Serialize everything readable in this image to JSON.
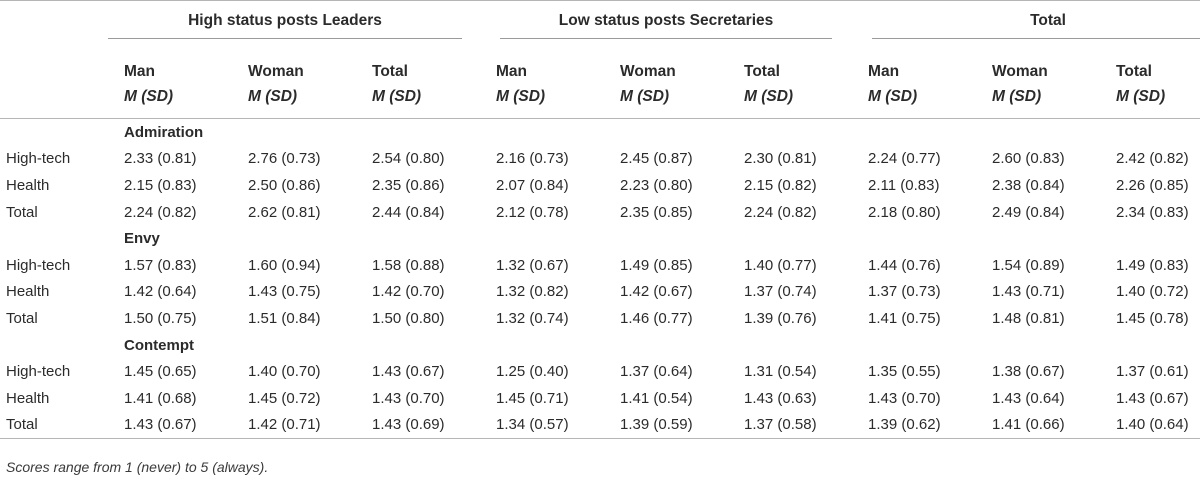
{
  "groups": [
    "High status posts Leaders",
    "Low status posts Secretaries",
    "Total"
  ],
  "subheaders": [
    "Man",
    "Woman",
    "Total"
  ],
  "stat_label": "M (SD)",
  "sections": [
    {
      "title": "Admiration",
      "rows": [
        {
          "label": "High-tech",
          "cells": [
            "2.33 (0.81)",
            "2.76 (0.73)",
            "2.54 (0.80)",
            "2.16 (0.73)",
            "2.45 (0.87)",
            "2.30 (0.81)",
            "2.24 (0.77)",
            "2.60 (0.83)",
            "2.42 (0.82)"
          ]
        },
        {
          "label": "Health",
          "cells": [
            "2.15 (0.83)",
            "2.50 (0.86)",
            "2.35 (0.86)",
            "2.07 (0.84)",
            "2.23 (0.80)",
            "2.15 (0.82)",
            "2.11 (0.83)",
            "2.38 (0.84)",
            "2.26 (0.85)"
          ]
        },
        {
          "label": "Total",
          "cells": [
            "2.24 (0.82)",
            "2.62 (0.81)",
            "2.44 (0.84)",
            "2.12 (0.78)",
            "2.35 (0.85)",
            "2.24 (0.82)",
            "2.18 (0.80)",
            "2.49 (0.84)",
            "2.34 (0.83)"
          ]
        }
      ]
    },
    {
      "title": "Envy",
      "rows": [
        {
          "label": "High-tech",
          "cells": [
            "1.57 (0.83)",
            "1.60 (0.94)",
            "1.58 (0.88)",
            "1.32 (0.67)",
            "1.49 (0.85)",
            "1.40 (0.77)",
            "1.44 (0.76)",
            "1.54 (0.89)",
            "1.49 (0.83)"
          ]
        },
        {
          "label": "Health",
          "cells": [
            "1.42 (0.64)",
            "1.43 (0.75)",
            "1.42 (0.70)",
            "1.32 (0.82)",
            "1.42 (0.67)",
            "1.37 (0.74)",
            "1.37 (0.73)",
            "1.43 (0.71)",
            "1.40 (0.72)"
          ]
        },
        {
          "label": "Total",
          "cells": [
            "1.50 (0.75)",
            "1.51 (0.84)",
            "1.50 (0.80)",
            "1.32 (0.74)",
            "1.46 (0.77)",
            "1.39 (0.76)",
            "1.41 (0.75)",
            "1.48 (0.81)",
            "1.45 (0.78)"
          ]
        }
      ]
    },
    {
      "title": "Contempt",
      "rows": [
        {
          "label": "High-tech",
          "cells": [
            "1.45 (0.65)",
            "1.40 (0.70)",
            "1.43 (0.67)",
            "1.25 (0.40)",
            "1.37 (0.64)",
            "1.31 (0.54)",
            "1.35 (0.55)",
            "1.38 (0.67)",
            "1.37 (0.61)"
          ]
        },
        {
          "label": "Health",
          "cells": [
            "1.41 (0.68)",
            "1.45 (0.72)",
            "1.43 (0.70)",
            "1.45 (0.71)",
            "1.41 (0.54)",
            "1.43 (0.63)",
            "1.43 (0.70)",
            "1.43 (0.64)",
            "1.43 (0.67)"
          ]
        },
        {
          "label": "Total",
          "cells": [
            "1.43 (0.67)",
            "1.42 (0.71)",
            "1.43 (0.69)",
            "1.34 (0.57)",
            "1.39 (0.59)",
            "1.37 (0.58)",
            "1.39 (0.62)",
            "1.41 (0.66)",
            "1.40 (0.64)"
          ]
        }
      ]
    }
  ],
  "note": "Scores range from 1 (never) to 5 (always)."
}
